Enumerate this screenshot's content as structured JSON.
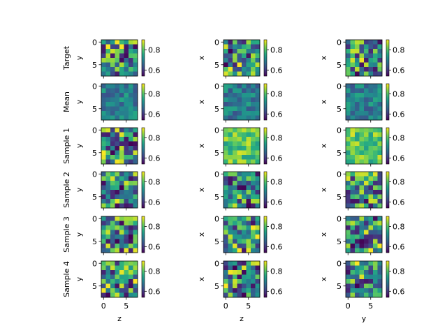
{
  "chart_data": {
    "type": "heatmap",
    "colormap": "viridis",
    "rows": [
      "Target",
      "Mean",
      "Sample 1",
      "Sample 2",
      "Sample 3",
      "Sample 4"
    ],
    "columns": [
      {
        "xlabel": "z",
        "ylabel": "y"
      },
      {
        "xlabel": "z",
        "ylabel": "x"
      },
      {
        "xlabel": "y",
        "ylabel": "x"
      }
    ],
    "grid_size": [
      8,
      8
    ],
    "x_ticks": [
      "0",
      "5"
    ],
    "y_ticks": [
      "0",
      "5"
    ],
    "colorbar_ticks": [
      "0.6",
      "0.8"
    ],
    "color_range": [
      0.54,
      0.9
    ],
    "value_seed": 7
  }
}
